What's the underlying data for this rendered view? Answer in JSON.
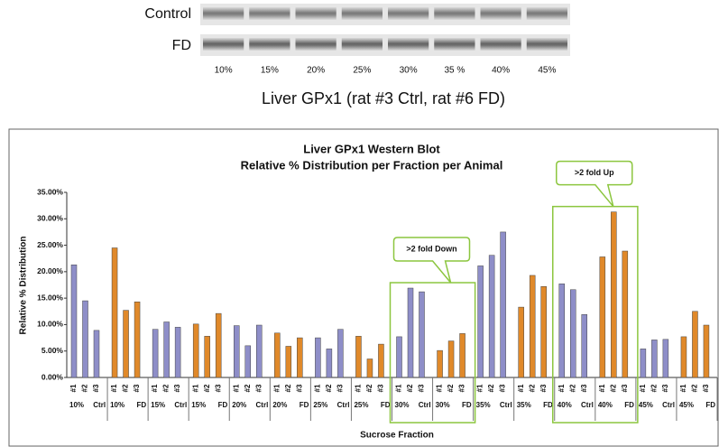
{
  "blot": {
    "rows": [
      "Control",
      "FD"
    ],
    "lanes": [
      "10%",
      "15%",
      "20%",
      "25%",
      "30%",
      "35 %",
      "40%",
      "45%"
    ],
    "caption": "Liver GPx1 (rat #3 Ctrl, rat #6 FD)"
  },
  "chart_data": {
    "type": "bar",
    "title": [
      "Liver GPx1 Western Blot",
      "Relative % Distribution per Fraction per Animal"
    ],
    "y_label": "Relative % Distribution",
    "x_label": "Sucrose Fraction",
    "animals": [
      "#1",
      "#2",
      "#3"
    ],
    "groups": [
      {
        "fraction": "10%",
        "condition": "Ctrl",
        "color": "#8e8ec8",
        "values": [
          21.3,
          14.5,
          8.9
        ]
      },
      {
        "fraction": "10%",
        "condition": "FD",
        "color": "#e0892a",
        "values": [
          24.5,
          12.7,
          14.3
        ]
      },
      {
        "fraction": "15%",
        "condition": "Ctrl",
        "color": "#8e8ec8",
        "values": [
          9.1,
          10.5,
          9.5
        ]
      },
      {
        "fraction": "15%",
        "condition": "FD",
        "color": "#e0892a",
        "values": [
          10.1,
          7.8,
          12.1
        ]
      },
      {
        "fraction": "20%",
        "condition": "Ctrl",
        "color": "#8e8ec8",
        "values": [
          9.8,
          6.0,
          9.9
        ]
      },
      {
        "fraction": "20%",
        "condition": "FD",
        "color": "#e0892a",
        "values": [
          8.4,
          5.9,
          7.5
        ]
      },
      {
        "fraction": "25%",
        "condition": "Ctrl",
        "color": "#8e8ec8",
        "values": [
          7.5,
          5.4,
          9.1
        ]
      },
      {
        "fraction": "25%",
        "condition": "FD",
        "color": "#e0892a",
        "values": [
          7.8,
          3.5,
          6.3
        ]
      },
      {
        "fraction": "30%",
        "condition": "Ctrl",
        "color": "#8e8ec8",
        "values": [
          7.7,
          16.9,
          16.2
        ]
      },
      {
        "fraction": "30%",
        "condition": "FD",
        "color": "#e0892a",
        "values": [
          5.1,
          6.9,
          8.3
        ]
      },
      {
        "fraction": "35%",
        "condition": "Ctrl",
        "color": "#8e8ec8",
        "values": [
          21.1,
          23.1,
          27.5
        ]
      },
      {
        "fraction": "35%",
        "condition": "FD",
        "color": "#e0892a",
        "values": [
          13.3,
          19.3,
          17.2
        ]
      },
      {
        "fraction": "40%",
        "condition": "Ctrl",
        "color": "#8e8ec8",
        "values": [
          17.7,
          16.6,
          11.9
        ]
      },
      {
        "fraction": "40%",
        "condition": "FD",
        "color": "#e0892a",
        "values": [
          22.8,
          31.3,
          23.9
        ]
      },
      {
        "fraction": "45%",
        "condition": "Ctrl",
        "color": "#8e8ec8",
        "values": [
          5.4,
          7.1,
          7.2
        ]
      },
      {
        "fraction": "45%",
        "condition": "FD",
        "color": "#e0892a",
        "values": [
          7.7,
          12.5,
          9.9
        ]
      }
    ],
    "ylim": [
      0,
      35
    ],
    "yticks": [
      {
        "value": 0,
        "label": "0.00%"
      },
      {
        "value": 5,
        "label": "5.00%"
      },
      {
        "value": 10,
        "label": "10.00%"
      },
      {
        "value": 15,
        "label": "15.00%"
      },
      {
        "value": 20,
        "label": "20.00%"
      },
      {
        "value": 25,
        "label": "25.00%"
      },
      {
        "value": 30,
        "label": "30.00%"
      },
      {
        "value": 35,
        "label": "35.00%"
      }
    ],
    "annotations": [
      {
        "text": ">2 fold Down",
        "groups": [
          8,
          9
        ]
      },
      {
        "text": ">2 fold Up",
        "groups": [
          12,
          13
        ]
      }
    ]
  }
}
